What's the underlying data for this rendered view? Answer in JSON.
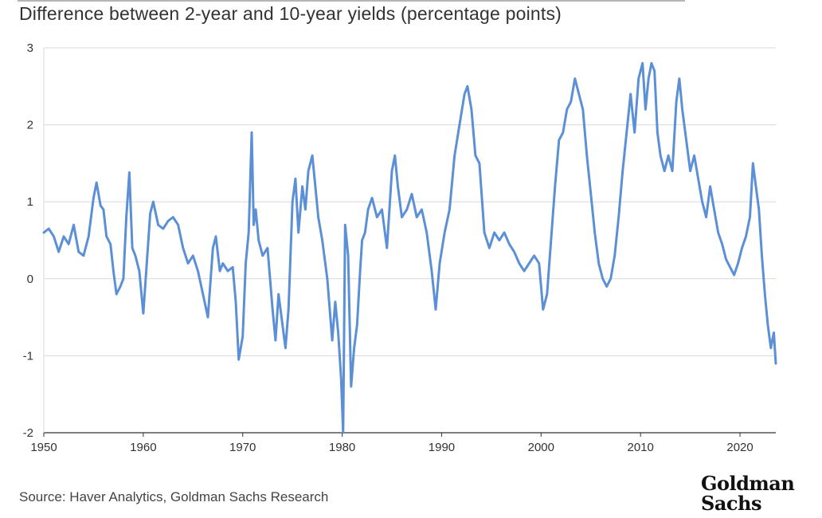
{
  "title": "Difference between 2-year and 10-year yields (percentage points)",
  "source": "Source: Haver Analytics, Goldman Sachs Research",
  "logo": {
    "line1": "Goldman",
    "line2": "Sachs"
  },
  "colors": {
    "line": "#5b8fd6",
    "grid": "#d9d9d9",
    "axis": "#333333"
  },
  "chart_data": {
    "type": "line",
    "title": "Difference between 2-year and 10-year yields (percentage points)",
    "xlabel": "",
    "ylabel": "",
    "xlim": [
      1950,
      2023.6
    ],
    "ylim": [
      -2,
      3
    ],
    "yticks": [
      3,
      2,
      1,
      0,
      -1,
      -2
    ],
    "xticks": [
      1950,
      1960,
      1970,
      1980,
      1990,
      2000,
      2010,
      2020
    ],
    "grid": "horizontal",
    "series": [
      {
        "values": [
          [
            1950.0,
            0.6
          ],
          [
            1950.5,
            0.65
          ],
          [
            1951.0,
            0.55
          ],
          [
            1951.5,
            0.35
          ],
          [
            1952.0,
            0.55
          ],
          [
            1952.5,
            0.45
          ],
          [
            1953.0,
            0.7
          ],
          [
            1953.5,
            0.35
          ],
          [
            1954.0,
            0.3
          ],
          [
            1954.5,
            0.55
          ],
          [
            1955.0,
            1.05
          ],
          [
            1955.3,
            1.25
          ],
          [
            1955.7,
            0.95
          ],
          [
            1956.0,
            0.9
          ],
          [
            1956.3,
            0.55
          ],
          [
            1956.7,
            0.45
          ],
          [
            1957.0,
            0.1
          ],
          [
            1957.3,
            -0.2
          ],
          [
            1957.7,
            -0.1
          ],
          [
            1958.0,
            0.0
          ],
          [
            1958.3,
            0.8
          ],
          [
            1958.6,
            1.38
          ],
          [
            1958.9,
            0.4
          ],
          [
            1959.2,
            0.3
          ],
          [
            1959.6,
            0.1
          ],
          [
            1960.0,
            -0.45
          ],
          [
            1960.3,
            0.1
          ],
          [
            1960.7,
            0.85
          ],
          [
            1961.0,
            1.0
          ],
          [
            1961.5,
            0.7
          ],
          [
            1962.0,
            0.65
          ],
          [
            1962.5,
            0.75
          ],
          [
            1963.0,
            0.8
          ],
          [
            1963.5,
            0.7
          ],
          [
            1964.0,
            0.4
          ],
          [
            1964.5,
            0.2
          ],
          [
            1965.0,
            0.3
          ],
          [
            1965.5,
            0.1
          ],
          [
            1966.0,
            -0.2
          ],
          [
            1966.5,
            -0.5
          ],
          [
            1967.0,
            0.4
          ],
          [
            1967.3,
            0.55
          ],
          [
            1967.7,
            0.1
          ],
          [
            1968.0,
            0.2
          ],
          [
            1968.5,
            0.1
          ],
          [
            1969.0,
            0.15
          ],
          [
            1969.3,
            -0.3
          ],
          [
            1969.6,
            -1.05
          ],
          [
            1970.0,
            -0.75
          ],
          [
            1970.3,
            0.2
          ],
          [
            1970.6,
            0.6
          ],
          [
            1970.9,
            1.9
          ],
          [
            1971.1,
            0.7
          ],
          [
            1971.3,
            0.9
          ],
          [
            1971.6,
            0.5
          ],
          [
            1972.0,
            0.3
          ],
          [
            1972.5,
            0.4
          ],
          [
            1973.0,
            -0.4
          ],
          [
            1973.3,
            -0.8
          ],
          [
            1973.6,
            -0.2
          ],
          [
            1974.0,
            -0.6
          ],
          [
            1974.3,
            -0.9
          ],
          [
            1974.6,
            -0.4
          ],
          [
            1975.0,
            1.0
          ],
          [
            1975.3,
            1.3
          ],
          [
            1975.6,
            0.6
          ],
          [
            1976.0,
            1.2
          ],
          [
            1976.3,
            0.9
          ],
          [
            1976.6,
            1.4
          ],
          [
            1977.0,
            1.6
          ],
          [
            1977.3,
            1.2
          ],
          [
            1977.6,
            0.8
          ],
          [
            1978.0,
            0.5
          ],
          [
            1978.5,
            0.0
          ],
          [
            1979.0,
            -0.8
          ],
          [
            1979.3,
            -0.3
          ],
          [
            1979.6,
            -0.7
          ],
          [
            1979.9,
            -1.3
          ],
          [
            1980.1,
            -2.0
          ],
          [
            1980.3,
            0.7
          ],
          [
            1980.6,
            0.3
          ],
          [
            1980.9,
            -1.4
          ],
          [
            1981.2,
            -0.9
          ],
          [
            1981.5,
            -0.6
          ],
          [
            1981.8,
            0.1
          ],
          [
            1982.0,
            0.5
          ],
          [
            1982.3,
            0.6
          ],
          [
            1982.6,
            0.9
          ],
          [
            1983.0,
            1.05
          ],
          [
            1983.5,
            0.8
          ],
          [
            1984.0,
            0.9
          ],
          [
            1984.5,
            0.4
          ],
          [
            1985.0,
            1.4
          ],
          [
            1985.3,
            1.6
          ],
          [
            1985.6,
            1.2
          ],
          [
            1986.0,
            0.8
          ],
          [
            1986.5,
            0.9
          ],
          [
            1987.0,
            1.1
          ],
          [
            1987.5,
            0.8
          ],
          [
            1988.0,
            0.9
          ],
          [
            1988.5,
            0.6
          ],
          [
            1989.0,
            0.1
          ],
          [
            1989.4,
            -0.4
          ],
          [
            1989.8,
            0.2
          ],
          [
            1990.3,
            0.6
          ],
          [
            1990.8,
            0.9
          ],
          [
            1991.3,
            1.6
          ],
          [
            1991.8,
            2.0
          ],
          [
            1992.3,
            2.4
          ],
          [
            1992.6,
            2.5
          ],
          [
            1993.0,
            2.2
          ],
          [
            1993.4,
            1.6
          ],
          [
            1993.8,
            1.5
          ],
          [
            1994.3,
            0.6
          ],
          [
            1994.8,
            0.4
          ],
          [
            1995.3,
            0.6
          ],
          [
            1995.8,
            0.5
          ],
          [
            1996.3,
            0.6
          ],
          [
            1996.8,
            0.45
          ],
          [
            1997.3,
            0.35
          ],
          [
            1997.8,
            0.2
          ],
          [
            1998.3,
            0.1
          ],
          [
            1998.8,
            0.2
          ],
          [
            1999.3,
            0.3
          ],
          [
            1999.8,
            0.2
          ],
          [
            2000.2,
            -0.4
          ],
          [
            2000.6,
            -0.2
          ],
          [
            2001.0,
            0.5
          ],
          [
            2001.4,
            1.2
          ],
          [
            2001.8,
            1.8
          ],
          [
            2002.2,
            1.9
          ],
          [
            2002.6,
            2.2
          ],
          [
            2003.0,
            2.3
          ],
          [
            2003.4,
            2.6
          ],
          [
            2003.8,
            2.4
          ],
          [
            2004.2,
            2.2
          ],
          [
            2004.6,
            1.6
          ],
          [
            2005.0,
            1.1
          ],
          [
            2005.4,
            0.6
          ],
          [
            2005.8,
            0.2
          ],
          [
            2006.2,
            0.0
          ],
          [
            2006.6,
            -0.1
          ],
          [
            2007.0,
            0.0
          ],
          [
            2007.4,
            0.3
          ],
          [
            2007.8,
            0.8
          ],
          [
            2008.2,
            1.4
          ],
          [
            2008.6,
            1.9
          ],
          [
            2009.0,
            2.4
          ],
          [
            2009.4,
            1.9
          ],
          [
            2009.8,
            2.6
          ],
          [
            2010.2,
            2.8
          ],
          [
            2010.5,
            2.2
          ],
          [
            2010.8,
            2.6
          ],
          [
            2011.1,
            2.8
          ],
          [
            2011.4,
            2.7
          ],
          [
            2011.7,
            1.9
          ],
          [
            2012.0,
            1.6
          ],
          [
            2012.4,
            1.4
          ],
          [
            2012.8,
            1.6
          ],
          [
            2013.2,
            1.4
          ],
          [
            2013.6,
            2.3
          ],
          [
            2013.9,
            2.6
          ],
          [
            2014.2,
            2.2
          ],
          [
            2014.6,
            1.8
          ],
          [
            2015.0,
            1.4
          ],
          [
            2015.4,
            1.6
          ],
          [
            2015.8,
            1.3
          ],
          [
            2016.2,
            1.0
          ],
          [
            2016.6,
            0.8
          ],
          [
            2017.0,
            1.2
          ],
          [
            2017.4,
            0.9
          ],
          [
            2017.8,
            0.6
          ],
          [
            2018.2,
            0.45
          ],
          [
            2018.6,
            0.25
          ],
          [
            2019.0,
            0.15
          ],
          [
            2019.4,
            0.05
          ],
          [
            2019.8,
            0.2
          ],
          [
            2020.2,
            0.4
          ],
          [
            2020.6,
            0.55
          ],
          [
            2021.0,
            0.8
          ],
          [
            2021.3,
            1.5
          ],
          [
            2021.6,
            1.2
          ],
          [
            2021.9,
            0.9
          ],
          [
            2022.2,
            0.3
          ],
          [
            2022.5,
            -0.2
          ],
          [
            2022.8,
            -0.6
          ],
          [
            2023.1,
            -0.9
          ],
          [
            2023.4,
            -0.7
          ],
          [
            2023.6,
            -1.1
          ]
        ]
      }
    ]
  }
}
